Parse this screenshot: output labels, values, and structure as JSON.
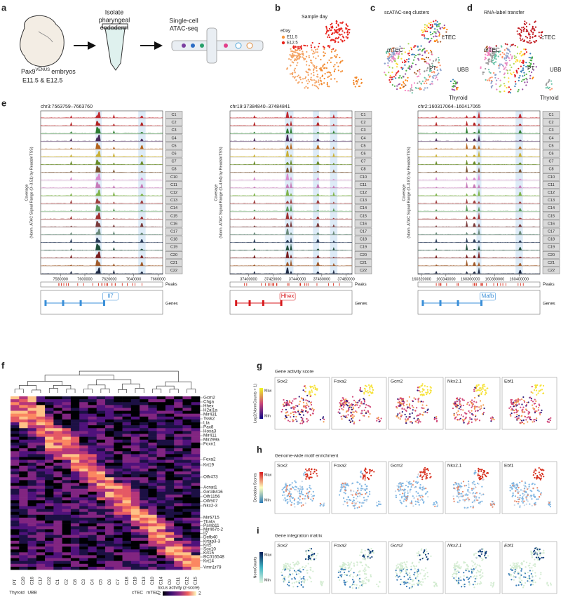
{
  "a": {
    "label": "a",
    "step1": [
      "Isolate",
      "pharyngeal",
      "endoderm"
    ],
    "step2": [
      "Single-cell",
      "ATAC-seq"
    ],
    "embryo": {
      "gene": "Pax9",
      "superscript": "VENUS",
      "suffix": "embryos"
    },
    "stages": "E11.5 & E12.5"
  },
  "b": {
    "label": "b",
    "title": "Sample day",
    "legend_title": "eDay",
    "legend": [
      "E11.5",
      "E12.5"
    ]
  },
  "c": {
    "label": "c",
    "title": "scATAC-seq clusters",
    "annotations": [
      "mTEC",
      "cTEC",
      "PT",
      "UBB",
      "Thyroid"
    ]
  },
  "d": {
    "label": "d",
    "title": "RNA-label transfer",
    "annotations": [
      "mTEC",
      "cTEC",
      "PT",
      "UBB",
      "Thyroid"
    ]
  },
  "e": {
    "label": "e",
    "clusters": [
      "C1",
      "C2",
      "C3",
      "C4",
      "C5",
      "C6",
      "C7",
      "C8",
      "C10",
      "C11",
      "C12",
      "C13",
      "C14",
      "C15",
      "C16",
      "C17",
      "C18",
      "C19",
      "C20",
      "C21",
      "C22"
    ],
    "peaks_label": "Peaks",
    "genes_label": "Genes",
    "loci": [
      {
        "region": "chr3:7563759–7663760",
        "y_label": [
          "Coverage",
          "(Norm. ATAC Signal Range (0–3.51) by ReadsInTSS)"
        ],
        "x_ticks": [
          "7580000",
          "7600000",
          "7620000",
          "7640000",
          "7660000"
        ],
        "genes": [
          "Il7"
        ]
      },
      {
        "region": "chr19:37384840–37484841",
        "y_label": [
          "Coverage",
          "(Norm. ATAC Signal Range (0–4.64) by ReadsInTSS)"
        ],
        "x_ticks": [
          "37400000",
          "37420000",
          "37440000",
          "37460000",
          "37480000"
        ],
        "genes": [
          "Hhex"
        ]
      },
      {
        "region": "chr2:160317064–160417065",
        "y_label": [
          "Coverage",
          "(Norm. ATAC Signal Range (0–0.87) by ReadsInTSS)"
        ],
        "x_ticks": [
          "160320000",
          "160340000",
          "160360000",
          "160380000",
          "160400000"
        ],
        "genes": [
          "Mafb"
        ]
      }
    ]
  },
  "f": {
    "label": "f",
    "genes": [
      "Gcm2",
      "Chga",
      "Hhex",
      "H2al1a",
      "Mir431",
      "Tssk2",
      "Lta",
      "Pax8",
      "Hoxa3",
      "Mir411",
      "Mir299a",
      "Foxn1",
      "Foxa2",
      "Krt19",
      "Olfr473",
      "Acnat1",
      "Gm38416",
      "Olfr1156",
      "Olfr507",
      "Nkx2-3",
      "Mir6715",
      "Tbata",
      "Psmb11",
      "Mir467c-2",
      "Il7",
      "Defb40",
      "Krtap3-3",
      "Krt5",
      "Sox10",
      "Krt15",
      "BC016548",
      "Krt14",
      "Vmn1r79"
    ],
    "columns": [
      "C20",
      "C16",
      "C17",
      "C22",
      "C1",
      "C2",
      "C8",
      "C3",
      "C4",
      "C5",
      "C6",
      "C7",
      "C18",
      "C19",
      "C13",
      "C10",
      "C14",
      "C9",
      "C11",
      "C12",
      "C15"
    ],
    "groups": [
      "PT",
      "Thyroid",
      "UBB",
      "cTEC",
      "mTEC"
    ],
    "legend_title": "locus activity (z-score)",
    "legend_ticks": [
      "−2",
      "2"
    ]
  },
  "g": {
    "label": "g",
    "title": "Gene activity score",
    "scale_label": "Log2(NormCounts + 1)",
    "scale_max": "Max",
    "scale_min": "Min",
    "genes": [
      "Sox2",
      "Foxa2",
      "Gcm2",
      "Nkx2.1",
      "Ebf1"
    ]
  },
  "h": {
    "label": "h",
    "title": "Genome-wide motif enrichment",
    "scale_label": "Deviation Scores",
    "scale_max": "Max",
    "scale_min": "Min",
    "genes": [
      "Sox2",
      "Foxa2",
      "Gcm2",
      "Nkx2.1",
      "Ebf1"
    ]
  },
  "i": {
    "label": "i",
    "title": "Gene integration matrix",
    "scale_label": "NormCounts",
    "scale_max": "Max",
    "scale_min": "Min",
    "genes": [
      "Sox2",
      "Foxa2",
      "Gcm2",
      "Nkx2.1",
      "Ebf1"
    ]
  }
}
